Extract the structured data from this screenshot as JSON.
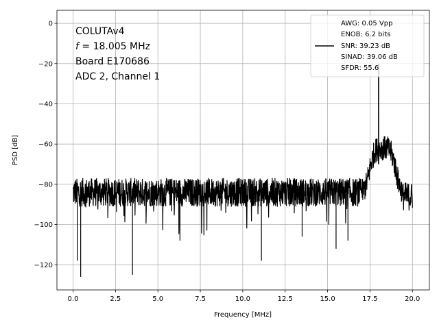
{
  "chart_data": {
    "type": "line",
    "title": "",
    "xlabel": "Frequency [MHz]",
    "ylabel": "PSD [dB]",
    "xlim": [
      -0.95,
      21.0
    ],
    "ylim": [
      -132.5,
      6.5
    ],
    "xticks": [
      0.0,
      2.5,
      5.0,
      7.5,
      10.0,
      12.5,
      15.0,
      17.5,
      20.0
    ],
    "xtick_labels": [
      "0.0",
      "2.5",
      "5.0",
      "7.5",
      "10.0",
      "12.5",
      "15.0",
      "17.5",
      "20.0"
    ],
    "yticks": [
      0,
      -20,
      -40,
      -60,
      -80,
      -100,
      -120
    ],
    "ytick_labels": [
      "0",
      "−20",
      "−40",
      "−60",
      "−80",
      "−100",
      "−120"
    ],
    "grid": true,
    "line_color": "#000000",
    "annotation": {
      "line1": "COLUTAv4",
      "line2_italic": "f",
      "line2_rest": " = 18.005 MHz",
      "line3": "Board E170686",
      "line4": "ADC 2, Channel 1"
    },
    "legend": {
      "placement": "top-right",
      "entries": [
        "AWG: 0.05 Vpp",
        "ENOB: 6.2 bits",
        "SNR: 39.23 dB",
        "SINAD: 39.06 dB",
        "SFDR: 55.6"
      ]
    },
    "series": [
      {
        "noise_floor_db": -84,
        "floor_points": [
          [
            0.0,
            -72
          ],
          [
            0.2,
            -80
          ],
          [
            0.25,
            -118
          ],
          [
            0.35,
            -84
          ],
          [
            0.45,
            -126
          ],
          [
            0.55,
            -86
          ],
          [
            1.0,
            -85
          ],
          [
            1.5,
            -92
          ],
          [
            2.0,
            -83
          ],
          [
            2.5,
            -88
          ],
          [
            3.0,
            -84
          ],
          [
            3.5,
            -125
          ],
          [
            3.6,
            -86
          ],
          [
            4.0,
            -84
          ],
          [
            4.5,
            -92
          ],
          [
            5.0,
            -83
          ],
          [
            5.5,
            -90
          ],
          [
            6.0,
            -84
          ],
          [
            6.3,
            -108
          ],
          [
            6.5,
            -85
          ],
          [
            7.0,
            -84
          ],
          [
            7.5,
            -92
          ],
          [
            8.0,
            -83
          ],
          [
            8.5,
            -90
          ],
          [
            9.0,
            -84
          ],
          [
            9.5,
            -98
          ],
          [
            10.0,
            -84
          ],
          [
            10.5,
            -91
          ],
          [
            11.1,
            -118
          ],
          [
            11.3,
            -86
          ],
          [
            12.0,
            -84
          ],
          [
            12.5,
            -93
          ],
          [
            13.0,
            -83
          ],
          [
            13.5,
            -106
          ],
          [
            14.0,
            -84
          ],
          [
            14.5,
            -92
          ],
          [
            15.0,
            -84
          ],
          [
            15.5,
            -112
          ],
          [
            15.8,
            -86
          ],
          [
            16.2,
            -108
          ],
          [
            16.5,
            -84
          ],
          [
            17.0,
            -80
          ]
        ],
        "hump_points": [
          [
            17.2,
            -78
          ],
          [
            17.5,
            -70
          ],
          [
            17.8,
            -66
          ],
          [
            18.0,
            -63
          ],
          [
            18.3,
            -62
          ],
          [
            18.6,
            -65
          ],
          [
            18.9,
            -72
          ],
          [
            19.2,
            -82
          ],
          [
            19.6,
            -90
          ],
          [
            20.0,
            -86
          ]
        ],
        "signal_peak": [
          18.005,
          -20
        ]
      }
    ]
  }
}
